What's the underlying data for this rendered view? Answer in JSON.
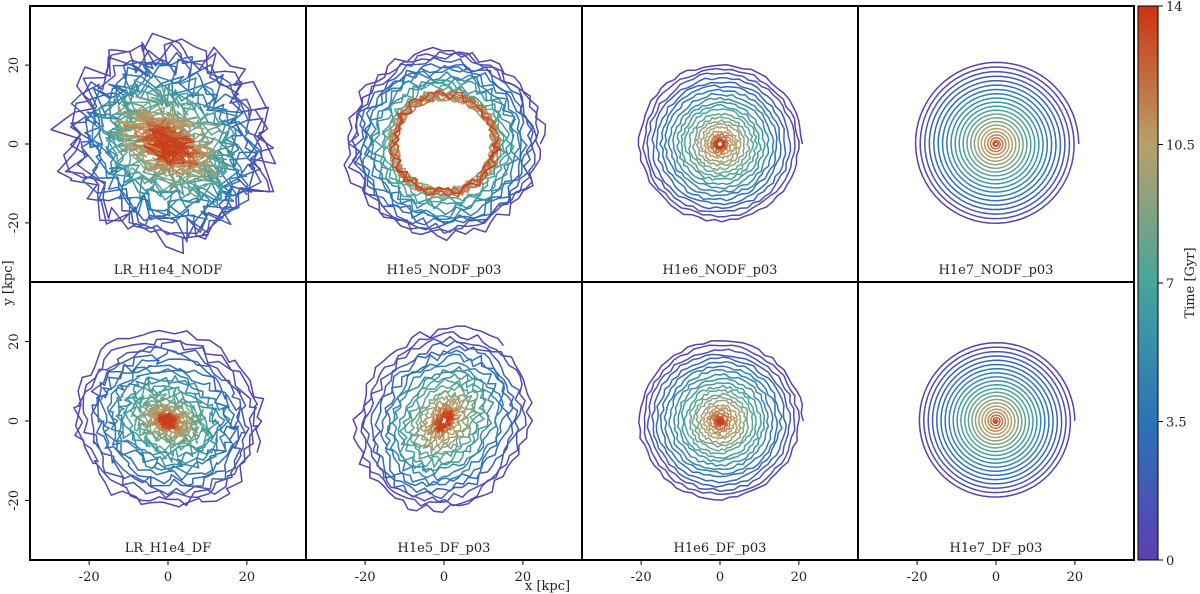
{
  "chart_data": {
    "type": "line",
    "description_units": "kpc",
    "xlabel": "x [kpc]",
    "ylabel": "y [kpc]",
    "xlim": [
      -35,
      35
    ],
    "ylim": [
      -35,
      35
    ],
    "xticks": [
      -20,
      0,
      20
    ],
    "yticks": [
      -20,
      0,
      20
    ],
    "colorbar": {
      "label": "Time [Gyr]",
      "range": [
        0,
        14
      ],
      "ticks": [
        0,
        3.5,
        7,
        10.5,
        14
      ],
      "tick_labels": [
        "0",
        "3.5",
        "7",
        "10.5",
        "14"
      ]
    },
    "panels": [
      {
        "label": "LR_H1e4_NODF",
        "row": 0,
        "col": 0,
        "r0": 24,
        "r1": 2,
        "style": "chaotic",
        "final_spread": 12
      },
      {
        "label": "H1e5_NODF_p03",
        "row": 0,
        "col": 1,
        "r0": 25,
        "r1": 13,
        "style": "ring",
        "final_spread": 0
      },
      {
        "label": "H1e6_NODF_p03",
        "row": 0,
        "col": 2,
        "r0": 21,
        "r1": 1,
        "style": "spiral",
        "final_spread": 0
      },
      {
        "label": "H1e7_NODF_p03",
        "row": 0,
        "col": 3,
        "r0": 21,
        "r1": 0.5,
        "style": "spiral_smooth",
        "final_spread": 0
      },
      {
        "label": "LR_H1e4_DF",
        "row": 1,
        "col": 0,
        "r0": 24,
        "r1": 1,
        "style": "chaotic_df",
        "final_spread": 0
      },
      {
        "label": "H1e5_DF_p03",
        "row": 1,
        "col": 1,
        "r0": 24,
        "r1": 2,
        "style": "spiral_noisy",
        "final_spread": 0
      },
      {
        "label": "H1e6_DF_p03",
        "row": 1,
        "col": 2,
        "r0": 21,
        "r1": 0.5,
        "style": "spiral",
        "final_spread": 0
      },
      {
        "label": "H1e7_DF_p03",
        "row": 1,
        "col": 3,
        "r0": 20,
        "r1": 0.3,
        "style": "spiral_smooth",
        "final_spread": 0
      }
    ]
  }
}
